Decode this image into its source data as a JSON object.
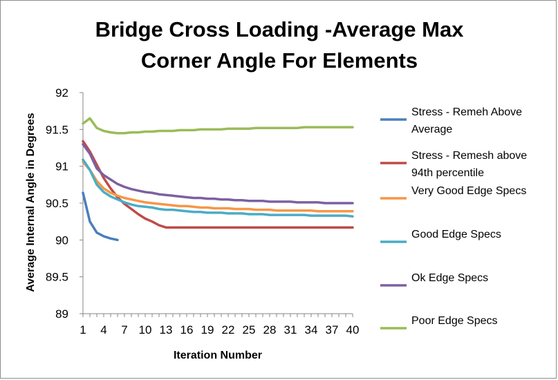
{
  "chart_data": {
    "type": "line",
    "title_lines": [
      "Bridge Cross Loading -Average Max",
      "Corner Angle For Elements"
    ],
    "xlabel": "Iteration Number",
    "ylabel": "Average Internal Angle in Degrees",
    "xlim": [
      1,
      40
    ],
    "ylim": [
      89,
      92
    ],
    "x_ticks": [
      1,
      4,
      7,
      10,
      13,
      16,
      19,
      22,
      25,
      28,
      31,
      34,
      37,
      40
    ],
    "y_ticks": [
      "89",
      "89.5",
      "90",
      "90.5",
      "91",
      "91.5",
      "92"
    ],
    "grid": false,
    "legend_position": "right",
    "series": [
      {
        "name": "Stress - Remeh Above Average",
        "legend_lines": [
          "Stress - Remeh Above",
          "Average"
        ],
        "color": "#4a7ebb",
        "x": [
          1,
          2,
          3,
          4,
          5,
          6
        ],
        "values": [
          90.64,
          90.25,
          90.1,
          90.05,
          90.02,
          90.0
        ]
      },
      {
        "name": "Stress - Remesh above 94th percentile",
        "legend_lines": [
          "Stress - Remesh above",
          "94th percentile"
        ],
        "color": "#be4b48",
        "x": [
          1,
          2,
          3,
          4,
          5,
          6,
          7,
          8,
          9,
          10,
          11,
          12,
          13,
          14,
          15,
          16,
          17,
          18,
          19,
          20,
          21,
          22,
          23,
          24,
          25,
          26,
          27,
          28,
          29,
          30,
          31,
          32,
          33,
          34,
          35,
          36,
          37,
          38,
          39,
          40
        ],
        "values": [
          91.34,
          91.2,
          91.02,
          90.84,
          90.7,
          90.58,
          90.49,
          90.42,
          90.35,
          90.29,
          90.25,
          90.2,
          90.17,
          90.17,
          90.17,
          90.17,
          90.17,
          90.17,
          90.17,
          90.17,
          90.17,
          90.17,
          90.17,
          90.17,
          90.17,
          90.17,
          90.17,
          90.17,
          90.17,
          90.17,
          90.17,
          90.17,
          90.17,
          90.17,
          90.17,
          90.17,
          90.17,
          90.17,
          90.17,
          90.17
        ]
      },
      {
        "name": "Very Good Edge Specs",
        "legend_lines": [
          "Very Good Edge Specs"
        ],
        "color": "#f79646",
        "x": [
          1,
          2,
          3,
          4,
          5,
          6,
          7,
          8,
          9,
          10,
          11,
          12,
          13,
          14,
          15,
          16,
          17,
          18,
          19,
          20,
          21,
          22,
          23,
          24,
          25,
          26,
          27,
          28,
          29,
          30,
          31,
          32,
          33,
          34,
          35,
          36,
          37,
          38,
          39,
          40
        ],
        "values": [
          91.06,
          90.95,
          90.8,
          90.7,
          90.64,
          90.6,
          90.57,
          90.55,
          90.53,
          90.51,
          90.5,
          90.49,
          90.48,
          90.47,
          90.46,
          90.46,
          90.45,
          90.44,
          90.44,
          90.43,
          90.43,
          90.43,
          90.42,
          90.42,
          90.42,
          90.41,
          90.41,
          90.41,
          90.4,
          90.4,
          90.4,
          90.4,
          90.4,
          90.4,
          90.39,
          90.39,
          90.39,
          90.39,
          90.39,
          90.39
        ]
      },
      {
        "name": "Good Edge Specs",
        "legend_lines": [
          "Good Edge Specs"
        ],
        "color": "#4bacc6",
        "x": [
          1,
          2,
          3,
          4,
          5,
          6,
          7,
          8,
          9,
          10,
          11,
          12,
          13,
          14,
          15,
          16,
          17,
          18,
          19,
          20,
          21,
          22,
          23,
          24,
          25,
          26,
          27,
          28,
          29,
          30,
          31,
          32,
          33,
          34,
          35,
          36,
          37,
          38,
          39,
          40
        ],
        "values": [
          91.09,
          90.95,
          90.75,
          90.65,
          90.59,
          90.55,
          90.51,
          90.48,
          90.46,
          90.45,
          90.44,
          90.42,
          90.41,
          90.41,
          90.4,
          90.39,
          90.38,
          90.38,
          90.37,
          90.37,
          90.37,
          90.36,
          90.36,
          90.36,
          90.35,
          90.35,
          90.35,
          90.34,
          90.34,
          90.34,
          90.34,
          90.34,
          90.34,
          90.33,
          90.33,
          90.33,
          90.33,
          90.33,
          90.33,
          90.32
        ]
      },
      {
        "name": "Ok Edge Specs",
        "legend_lines": [
          "Ok Edge Specs"
        ],
        "color": "#7d60a0",
        "x": [
          1,
          2,
          3,
          4,
          5,
          6,
          7,
          8,
          9,
          10,
          11,
          12,
          13,
          14,
          15,
          16,
          17,
          18,
          19,
          20,
          21,
          22,
          23,
          24,
          25,
          26,
          27,
          28,
          29,
          30,
          31,
          32,
          33,
          34,
          35,
          36,
          37,
          38,
          39,
          40
        ],
        "values": [
          91.3,
          91.17,
          90.97,
          90.88,
          90.82,
          90.76,
          90.72,
          90.69,
          90.67,
          90.65,
          90.64,
          90.62,
          90.61,
          90.6,
          90.59,
          90.58,
          90.57,
          90.57,
          90.56,
          90.56,
          90.55,
          90.55,
          90.54,
          90.54,
          90.53,
          90.53,
          90.53,
          90.52,
          90.52,
          90.52,
          90.52,
          90.51,
          90.51,
          90.51,
          90.51,
          90.5,
          90.5,
          90.5,
          90.5,
          90.5
        ]
      },
      {
        "name": "Poor Edge Specs",
        "legend_lines": [
          "Poor Edge Specs"
        ],
        "color": "#9bbb59",
        "x": [
          1,
          2,
          3,
          4,
          5,
          6,
          7,
          8,
          9,
          10,
          11,
          12,
          13,
          14,
          15,
          16,
          17,
          18,
          19,
          20,
          21,
          22,
          23,
          24,
          25,
          26,
          27,
          28,
          29,
          30,
          31,
          32,
          33,
          34,
          35,
          36,
          37,
          38,
          39,
          40
        ],
        "values": [
          91.58,
          91.65,
          91.52,
          91.48,
          91.46,
          91.45,
          91.45,
          91.46,
          91.46,
          91.47,
          91.47,
          91.48,
          91.48,
          91.48,
          91.49,
          91.49,
          91.49,
          91.5,
          91.5,
          91.5,
          91.5,
          91.51,
          91.51,
          91.51,
          91.51,
          91.52,
          91.52,
          91.52,
          91.52,
          91.52,
          91.52,
          91.52,
          91.53,
          91.53,
          91.53,
          91.53,
          91.53,
          91.53,
          91.53,
          91.53
        ]
      }
    ]
  }
}
